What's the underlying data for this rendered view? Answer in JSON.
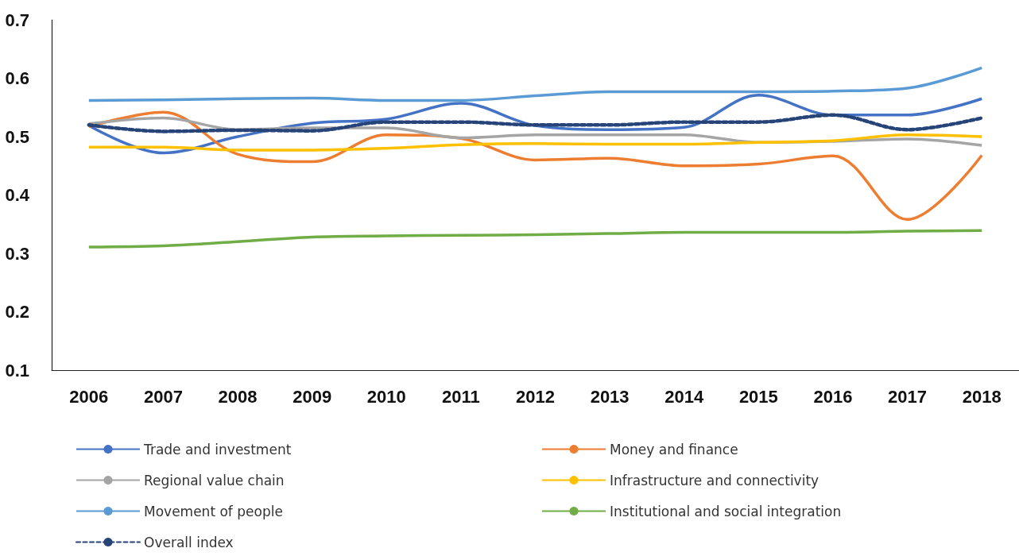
{
  "chart_data": {
    "type": "line",
    "categories": [
      "2006",
      "2007",
      "2008",
      "2009",
      "2010",
      "2011",
      "2012",
      "2013",
      "2014",
      "2015",
      "2016",
      "2017",
      "2018"
    ],
    "series": [
      {
        "name": "Trade and investment",
        "color": "#4472c4",
        "values": [
          0.519,
          0.472,
          0.5,
          0.523,
          0.53,
          0.557,
          0.519,
          0.512,
          0.516,
          0.571,
          0.537,
          0.537,
          0.565
        ]
      },
      {
        "name": "Money and finance",
        "color": "#ed7d31",
        "values": [
          0.517,
          0.542,
          0.47,
          0.457,
          0.503,
          0.497,
          0.46,
          0.463,
          0.45,
          0.453,
          0.467,
          0.358,
          0.468
        ]
      },
      {
        "name": "Regional value chain",
        "color": "#a5a5a5",
        "values": [
          0.522,
          0.532,
          0.512,
          0.515,
          0.515,
          0.498,
          0.503,
          0.503,
          0.503,
          0.49,
          0.492,
          0.496,
          0.485
        ]
      },
      {
        "name": "Infrastructure and connectivity",
        "color": "#ffc000",
        "values": [
          0.482,
          0.482,
          0.477,
          0.477,
          0.48,
          0.486,
          0.488,
          0.487,
          0.487,
          0.49,
          0.493,
          0.503,
          0.5
        ]
      },
      {
        "name": "Movement of people",
        "color": "#5b9bd5",
        "values": [
          0.562,
          0.563,
          0.565,
          0.566,
          0.562,
          0.562,
          0.57,
          0.577,
          0.577,
          0.577,
          0.578,
          0.583,
          0.618
        ]
      },
      {
        "name": "Institutional and social integration",
        "color": "#70ad47",
        "values": [
          0.311,
          0.313,
          0.32,
          0.328,
          0.33,
          0.331,
          0.332,
          0.334,
          0.336,
          0.336,
          0.336,
          0.338,
          0.339
        ]
      },
      {
        "name": "Overall index",
        "color": "#264478",
        "line_style": "dashed",
        "values": [
          0.52,
          0.509,
          0.511,
          0.51,
          0.525,
          0.525,
          0.52,
          0.52,
          0.525,
          0.525,
          0.537,
          0.512,
          0.532
        ]
      }
    ],
    "ylim": [
      0.1,
      0.7
    ],
    "yticks": [
      0.1,
      0.2,
      0.3,
      0.4,
      0.5,
      0.6,
      0.7
    ],
    "grid": false,
    "legend": "bottom",
    "marker": "none",
    "line_style": "solid"
  }
}
